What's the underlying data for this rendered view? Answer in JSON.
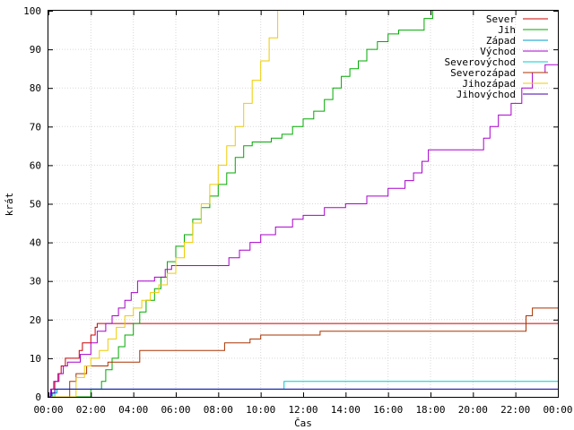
{
  "chart_data": {
    "type": "line",
    "title": "",
    "xlabel": "Čas",
    "ylabel": "krát",
    "xlim": [
      0,
      24
    ],
    "ylim": [
      0,
      100
    ],
    "grid": true,
    "legend_position": "top-right",
    "x_ticks": [
      0,
      2,
      4,
      6,
      8,
      10,
      12,
      14,
      16,
      18,
      20,
      22,
      24
    ],
    "x_tick_labels": [
      "00:00",
      "02:00",
      "04:00",
      "06:00",
      "08:00",
      "10:00",
      "12:00",
      "14:00",
      "16:00",
      "18:00",
      "20:00",
      "22:00",
      "00:00"
    ],
    "y_ticks": [
      0,
      10,
      20,
      30,
      40,
      50,
      60,
      70,
      80,
      90,
      100
    ],
    "y_tick_labels": [
      "0",
      "10",
      "20",
      "30",
      "40",
      "50",
      "60",
      "70",
      "80",
      "90",
      "100"
    ],
    "series": [
      {
        "name": "Sever",
        "color": "#cc0000",
        "points": [
          [
            0,
            0
          ],
          [
            0.15,
            2
          ],
          [
            0.3,
            4
          ],
          [
            0.45,
            6
          ],
          [
            0.6,
            8
          ],
          [
            0.8,
            10
          ],
          [
            1.2,
            10
          ],
          [
            1.45,
            12
          ],
          [
            1.6,
            14
          ],
          [
            2.0,
            16
          ],
          [
            2.2,
            18
          ],
          [
            2.3,
            19
          ],
          [
            24,
            19
          ]
        ]
      },
      {
        "name": "Jih",
        "color": "#00aa00",
        "points": [
          [
            0,
            0
          ],
          [
            1.85,
            0
          ],
          [
            2.0,
            2
          ],
          [
            2.5,
            4
          ],
          [
            2.7,
            7
          ],
          [
            3.0,
            10
          ],
          [
            3.3,
            13
          ],
          [
            3.6,
            16
          ],
          [
            4.0,
            19
          ],
          [
            4.3,
            22
          ],
          [
            4.6,
            25
          ],
          [
            5.0,
            28
          ],
          [
            5.3,
            31
          ],
          [
            5.6,
            35
          ],
          [
            6.0,
            39
          ],
          [
            6.4,
            42
          ],
          [
            6.8,
            46
          ],
          [
            7.2,
            49
          ],
          [
            7.6,
            52
          ],
          [
            8.0,
            55
          ],
          [
            8.4,
            58
          ],
          [
            8.8,
            62
          ],
          [
            9.2,
            65
          ],
          [
            9.6,
            66
          ],
          [
            10.5,
            67
          ],
          [
            11.0,
            68
          ],
          [
            11.5,
            70
          ],
          [
            12.0,
            72
          ],
          [
            12.5,
            74
          ],
          [
            13.0,
            77
          ],
          [
            13.4,
            80
          ],
          [
            13.8,
            83
          ],
          [
            14.2,
            85
          ],
          [
            14.6,
            87
          ],
          [
            15.0,
            90
          ],
          [
            15.5,
            92
          ],
          [
            16.0,
            94
          ],
          [
            16.5,
            95
          ],
          [
            17.2,
            95
          ],
          [
            17.7,
            98
          ],
          [
            18.1,
            100
          ]
        ]
      },
      {
        "name": "Západ",
        "color": "#0099cc",
        "points": [
          [
            0,
            0
          ],
          [
            0.2,
            1
          ],
          [
            0.4,
            2
          ],
          [
            24,
            2
          ]
        ]
      },
      {
        "name": "Východ",
        "color": "#aa00cc",
        "points": [
          [
            0,
            0
          ],
          [
            0.1,
            2
          ],
          [
            0.25,
            4
          ],
          [
            0.5,
            6
          ],
          [
            0.7,
            8
          ],
          [
            0.9,
            9
          ],
          [
            1.5,
            11
          ],
          [
            2.0,
            14
          ],
          [
            2.3,
            17
          ],
          [
            2.7,
            19
          ],
          [
            3.0,
            21
          ],
          [
            3.3,
            23
          ],
          [
            3.6,
            25
          ],
          [
            3.9,
            27
          ],
          [
            4.2,
            30
          ],
          [
            5.0,
            31
          ],
          [
            5.5,
            33
          ],
          [
            5.8,
            34
          ],
          [
            8.2,
            34
          ],
          [
            8.5,
            36
          ],
          [
            9.0,
            38
          ],
          [
            9.5,
            40
          ],
          [
            10.0,
            42
          ],
          [
            10.7,
            44
          ],
          [
            11.5,
            46
          ],
          [
            12.0,
            47
          ],
          [
            13.0,
            49
          ],
          [
            14.0,
            50
          ],
          [
            15.0,
            52
          ],
          [
            16.0,
            54
          ],
          [
            16.8,
            56
          ],
          [
            17.2,
            58
          ],
          [
            17.6,
            61
          ],
          [
            17.9,
            64
          ],
          [
            20.3,
            64
          ],
          [
            20.5,
            67
          ],
          [
            20.8,
            70
          ],
          [
            21.2,
            73
          ],
          [
            21.8,
            76
          ],
          [
            22.3,
            80
          ],
          [
            22.8,
            84
          ],
          [
            23.4,
            86
          ],
          [
            24,
            86
          ]
        ]
      },
      {
        "name": "Severovýchod",
        "color": "#00cccc",
        "points": [
          [
            0,
            0
          ],
          [
            0.3,
            2
          ],
          [
            11.0,
            2
          ],
          [
            11.1,
            4
          ],
          [
            24,
            4
          ]
        ]
      },
      {
        "name": "Severozápad",
        "color": "#aa3300",
        "points": [
          [
            0,
            0
          ],
          [
            0.8,
            0
          ],
          [
            1.0,
            4
          ],
          [
            1.3,
            6
          ],
          [
            1.8,
            8
          ],
          [
            2.8,
            9
          ],
          [
            4.0,
            9
          ],
          [
            4.3,
            12
          ],
          [
            7.5,
            12
          ],
          [
            8.3,
            14
          ],
          [
            9.5,
            15
          ],
          [
            10.0,
            16
          ],
          [
            12.8,
            17
          ],
          [
            15.5,
            17
          ],
          [
            22.3,
            17
          ],
          [
            22.5,
            21
          ],
          [
            22.8,
            23
          ],
          [
            24,
            23
          ]
        ]
      },
      {
        "name": "Jihozápad",
        "color": "#eecc00",
        "points": [
          [
            0,
            0
          ],
          [
            1.0,
            0
          ],
          [
            1.3,
            5
          ],
          [
            1.7,
            8
          ],
          [
            2.0,
            10
          ],
          [
            2.4,
            12
          ],
          [
            2.8,
            15
          ],
          [
            3.2,
            18
          ],
          [
            3.6,
            21
          ],
          [
            4.0,
            23
          ],
          [
            4.4,
            25
          ],
          [
            4.8,
            27
          ],
          [
            5.2,
            29
          ],
          [
            5.6,
            32
          ],
          [
            6.0,
            36
          ],
          [
            6.4,
            40
          ],
          [
            6.8,
            45
          ],
          [
            7.2,
            50
          ],
          [
            7.6,
            55
          ],
          [
            8.0,
            60
          ],
          [
            8.4,
            65
          ],
          [
            8.8,
            70
          ],
          [
            9.2,
            76
          ],
          [
            9.6,
            82
          ],
          [
            10.0,
            87
          ],
          [
            10.4,
            93
          ],
          [
            10.8,
            100
          ]
        ]
      },
      {
        "name": "Jihovýchod",
        "color": "#4400aa",
        "points": [
          [
            0,
            0
          ],
          [
            0.1,
            1
          ],
          [
            0.3,
            2
          ],
          [
            24,
            2
          ]
        ]
      }
    ]
  }
}
